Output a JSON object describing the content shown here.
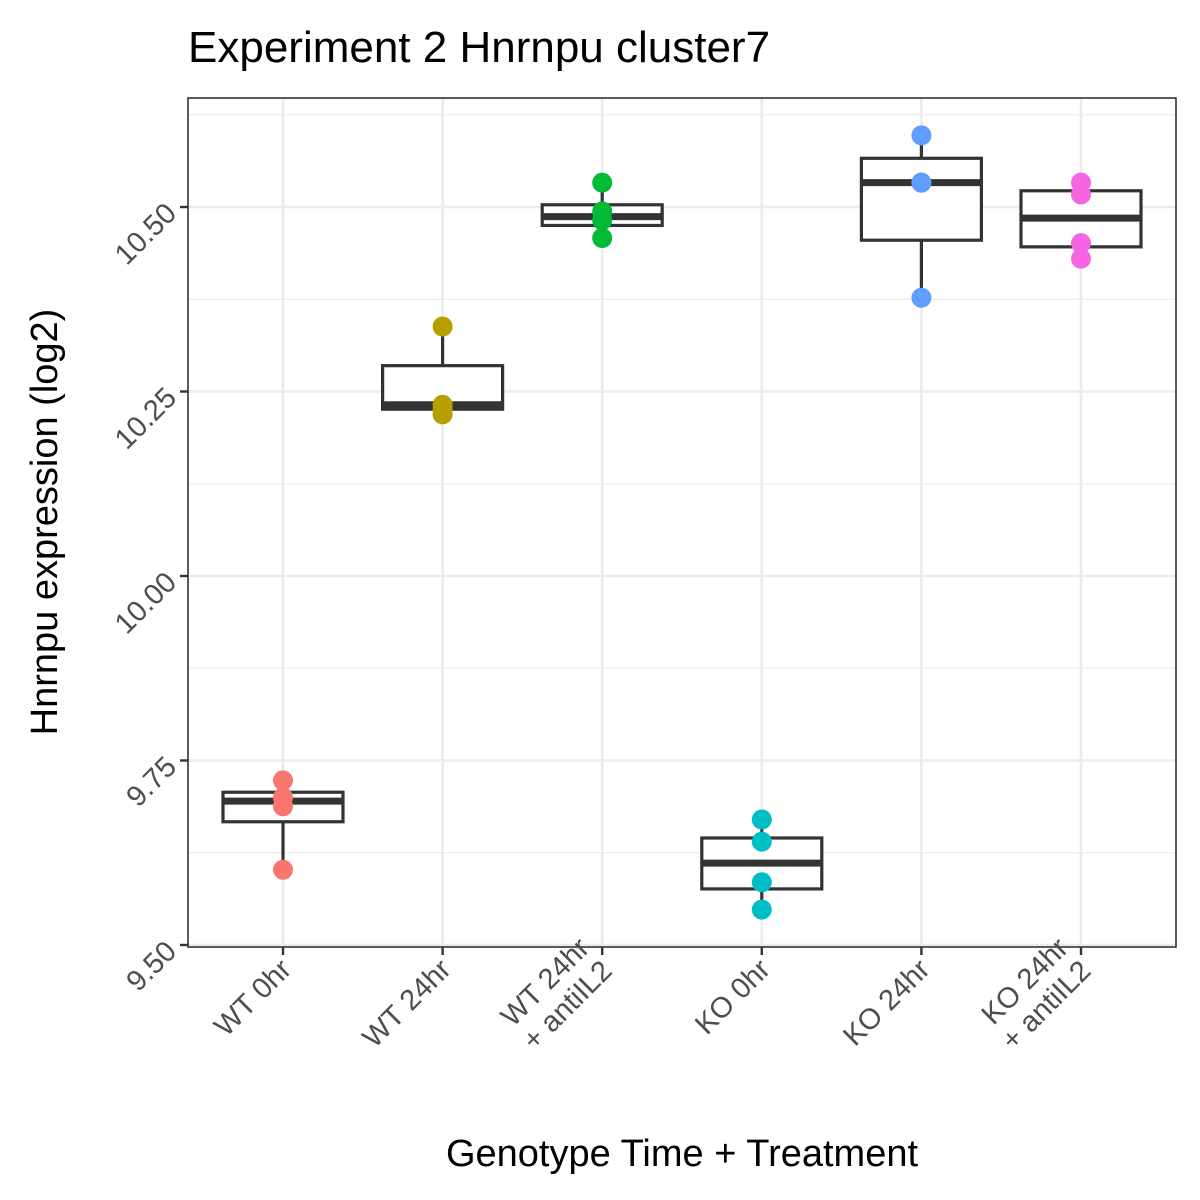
{
  "chart_data": {
    "type": "box",
    "title": "Experiment 2 Hnrnpu cluster7",
    "xlabel": "Genotype Time + Treatment",
    "ylabel": "Hnrnpu expression (log2)",
    "ylim": [
      9.5,
      10.65
    ],
    "yticks": [
      9.5,
      9.75,
      10.0,
      10.25,
      10.5
    ],
    "ytick_labels": [
      "9.50",
      "9.75",
      "10.00",
      "10.25",
      "10.50"
    ],
    "grid": true,
    "categories": [
      {
        "label": [
          "WT 0hr"
        ],
        "color": "#F8766D"
      },
      {
        "label": [
          "WT 24hr"
        ],
        "color": "#B79F00"
      },
      {
        "label": [
          "WT 24hr",
          "+ antiIL2"
        ],
        "color": "#00BA38"
      },
      {
        "label": [
          "KO 0hr"
        ],
        "color": "#00BFC4"
      },
      {
        "label": [
          "KO 24hr"
        ],
        "color": "#619CFF"
      },
      {
        "label": [
          "KO 24hr",
          "+ antiIL2"
        ],
        "color": "#F564E3"
      }
    ],
    "boxes": [
      {
        "min": 9.602,
        "q1": 9.667,
        "median": 9.695,
        "q3": 9.707,
        "max": 9.723
      },
      {
        "min": 10.219,
        "q1": 10.226,
        "median": 10.232,
        "q3": 10.285,
        "max": 10.338
      },
      {
        "min": 10.458,
        "q1": 10.475,
        "median": 10.487,
        "q3": 10.503,
        "max": 10.533
      },
      {
        "min": 9.548,
        "q1": 9.576,
        "median": 9.611,
        "q3": 9.645,
        "max": 9.67
      },
      {
        "min": 10.377,
        "q1": 10.455,
        "median": 10.533,
        "q3": 10.566,
        "max": 10.597
      },
      {
        "min": 10.43,
        "q1": 10.446,
        "median": 10.485,
        "q3": 10.522,
        "max": 10.533
      }
    ],
    "points": [
      [
        9.723,
        9.7,
        9.688,
        9.602
      ],
      [
        10.338,
        10.232,
        10.226,
        10.219
      ],
      [
        10.533,
        10.494,
        10.482,
        10.458
      ],
      [
        9.67,
        9.64,
        9.585,
        9.548
      ],
      [
        10.597,
        10.533,
        10.533,
        10.377
      ],
      [
        10.533,
        10.517,
        10.451,
        10.43
      ]
    ]
  }
}
